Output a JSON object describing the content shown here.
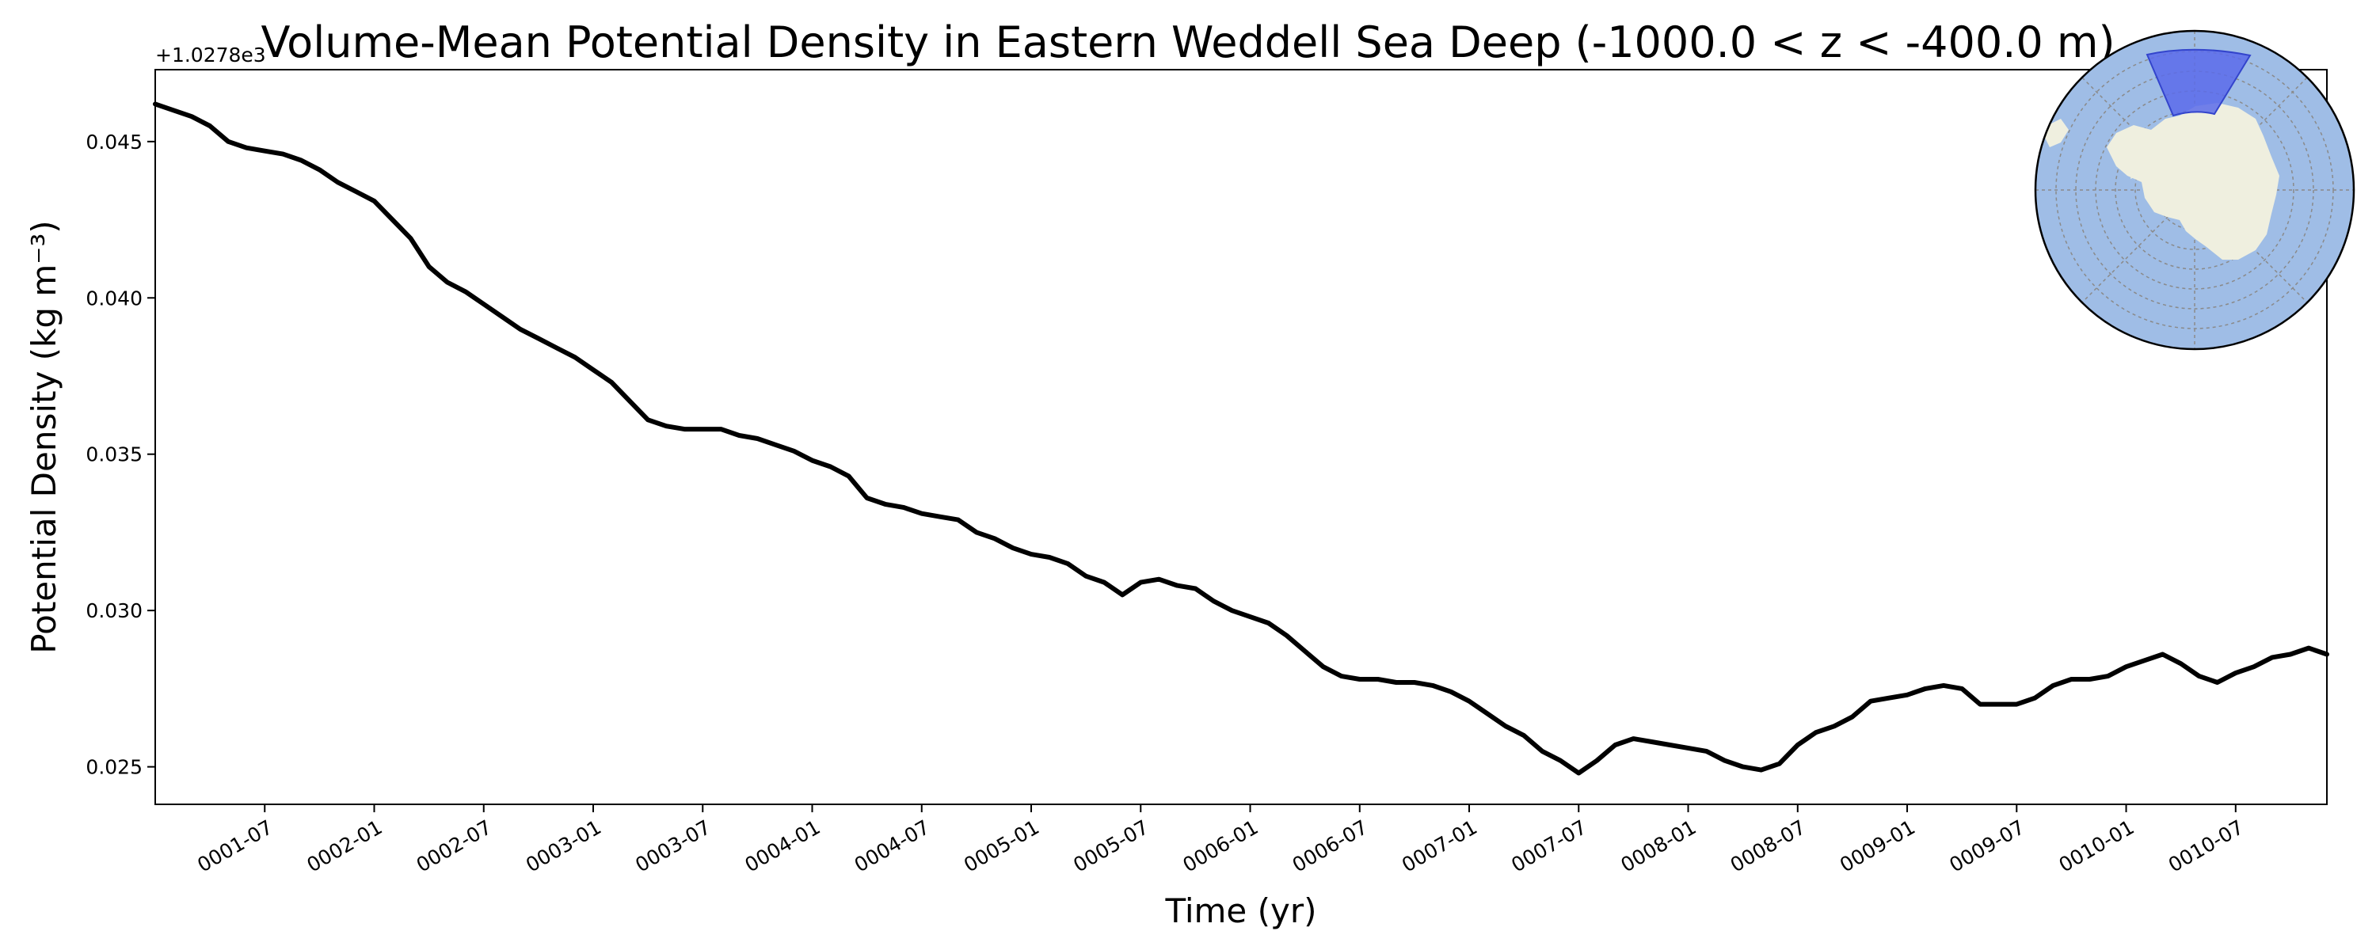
{
  "chart_data": {
    "type": "line",
    "title": "Volume-Mean Potential Density in Eastern Weddell Sea Deep (-1000.0 < z < -400.0 m)",
    "xlabel": "Time (yr)",
    "ylabel": "Potential Density (kg m⁻³)",
    "y_offset_label": "+1.0278e3",
    "xlim": [
      "0001-01",
      "0010-12"
    ],
    "ylim": [
      0.0238,
      0.0473
    ],
    "grid": false,
    "line_color": "#000000",
    "x_ticks": [
      "0001-07",
      "0002-01",
      "0002-07",
      "0003-01",
      "0003-07",
      "0004-01",
      "0004-07",
      "0005-01",
      "0005-07",
      "0006-01",
      "0006-07",
      "0007-01",
      "0007-07",
      "0008-01",
      "0008-07",
      "0009-01",
      "0009-07",
      "0010-01",
      "0010-07"
    ],
    "y_ticks": [
      "0.025",
      "0.030",
      "0.035",
      "0.040",
      "0.045"
    ],
    "series": [
      {
        "x": [
          "0001-01",
          "0001-02",
          "0001-03",
          "0001-04",
          "0001-05",
          "0001-06",
          "0001-07",
          "0001-08",
          "0001-09",
          "0001-10",
          "0001-11",
          "0001-12",
          "0002-01",
          "0002-02",
          "0002-03",
          "0002-04",
          "0002-05",
          "0002-06",
          "0002-07",
          "0002-08",
          "0002-09",
          "0002-10",
          "0002-11",
          "0002-12",
          "0003-01",
          "0003-02",
          "0003-03",
          "0003-04",
          "0003-05",
          "0003-06",
          "0003-07",
          "0003-08",
          "0003-09",
          "0003-10",
          "0003-11",
          "0003-12",
          "0004-01",
          "0004-02",
          "0004-03",
          "0004-04",
          "0004-05",
          "0004-06",
          "0004-07",
          "0004-08",
          "0004-09",
          "0004-10",
          "0004-11",
          "0004-12",
          "0005-01",
          "0005-02",
          "0005-03",
          "0005-04",
          "0005-05",
          "0005-06",
          "0005-07",
          "0005-08",
          "0005-09",
          "0005-10",
          "0005-11",
          "0005-12",
          "0006-01",
          "0006-02",
          "0006-03",
          "0006-04",
          "0006-05",
          "0006-06",
          "0006-07",
          "0006-08",
          "0006-09",
          "0006-10",
          "0006-11",
          "0006-12",
          "0007-01",
          "0007-02",
          "0007-03",
          "0007-04",
          "0007-05",
          "0007-06",
          "0007-07",
          "0007-08",
          "0007-09",
          "0007-10",
          "0007-11",
          "0007-12",
          "0008-01",
          "0008-02",
          "0008-03",
          "0008-04",
          "0008-05",
          "0008-06",
          "0008-07",
          "0008-08",
          "0008-09",
          "0008-10",
          "0008-11",
          "0008-12",
          "0009-01",
          "0009-02",
          "0009-03",
          "0009-04",
          "0009-05",
          "0009-06",
          "0009-07",
          "0009-08",
          "0009-09",
          "0009-10",
          "0009-11",
          "0009-12",
          "0010-01",
          "0010-02",
          "0010-03",
          "0010-04",
          "0010-05",
          "0010-06",
          "0010-07",
          "0010-08",
          "0010-09",
          "0010-10",
          "0010-11",
          "0010-12"
        ],
        "y": [
          0.0462,
          0.046,
          0.0458,
          0.0455,
          0.045,
          0.0448,
          0.0447,
          0.0446,
          0.0444,
          0.0441,
          0.0437,
          0.0434,
          0.0431,
          0.0425,
          0.0419,
          0.041,
          0.0405,
          0.0402,
          0.0398,
          0.0394,
          0.039,
          0.0387,
          0.0384,
          0.0381,
          0.0377,
          0.0373,
          0.0367,
          0.0361,
          0.0359,
          0.0358,
          0.0358,
          0.0358,
          0.0356,
          0.0355,
          0.0353,
          0.0351,
          0.0348,
          0.0346,
          0.0343,
          0.0336,
          0.0334,
          0.0333,
          0.0331,
          0.033,
          0.0329,
          0.0325,
          0.0323,
          0.032,
          0.0318,
          0.0317,
          0.0315,
          0.0311,
          0.0309,
          0.0305,
          0.0309,
          0.031,
          0.0308,
          0.0307,
          0.0303,
          0.03,
          0.0298,
          0.0296,
          0.0292,
          0.0287,
          0.0282,
          0.0279,
          0.0278,
          0.0278,
          0.0277,
          0.0277,
          0.0276,
          0.0274,
          0.0271,
          0.0267,
          0.0263,
          0.026,
          0.0255,
          0.0252,
          0.0248,
          0.0252,
          0.0257,
          0.0259,
          0.0258,
          0.0257,
          0.0256,
          0.0255,
          0.0252,
          0.025,
          0.0249,
          0.0251,
          0.0257,
          0.0261,
          0.0263,
          0.0266,
          0.0271,
          0.0272,
          0.0273,
          0.0275,
          0.0276,
          0.0275,
          0.027,
          0.027,
          0.027,
          0.0272,
          0.0276,
          0.0278,
          0.0278,
          0.0279,
          0.0282,
          0.0284,
          0.0286,
          0.0283,
          0.0279,
          0.0277,
          0.028,
          0.0282,
          0.0285,
          0.0286,
          0.0288,
          0.0286
        ]
      }
    ]
  },
  "inset_map": {
    "ocean_color": "#9fbde6",
    "land_color": "#efefdf",
    "region_color": "#5a6bea"
  }
}
